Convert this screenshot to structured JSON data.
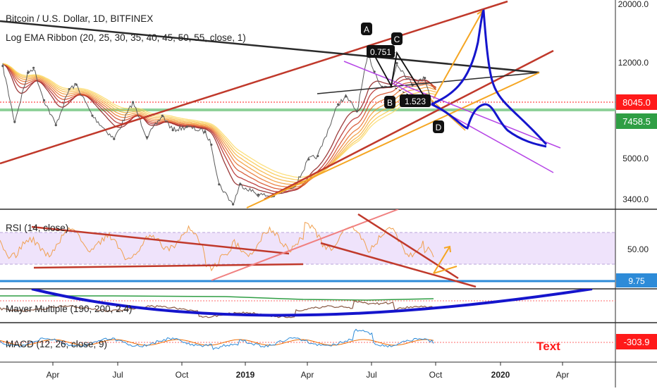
{
  "header": {
    "symbol": "Bitcoin / U.S. Dollar, 1D, BITFINEX",
    "indicator": "Log EMA Ribbon (20, 25, 30, 35, 40, 45, 50, 55, close, 1)"
  },
  "annotations": {
    "a": "A",
    "b": "B",
    "c": "C",
    "d": "D",
    "ratio_ac": "0.751",
    "ratio_bd": "1.523",
    "text_note": "Text"
  },
  "colors": {
    "price": "#5a5a5a",
    "channel": "#c0392b",
    "support": "#f5a623",
    "projection": "#1515cc",
    "pattern": "#b544e6",
    "rsi": "#f0a050",
    "rsi_band": "#efe3fb",
    "mayer_line": "#2f9e44",
    "macd_line": "#2d8bd8",
    "signal_line": "#ef6c00",
    "alert_red": "#ff1a1a"
  },
  "chart_data": [
    {
      "type": "line",
      "title": "Bitcoin / U.S. Dollar, 1D, BITFINEX",
      "scale": "log",
      "ylim": [
        3000,
        20000
      ],
      "y_ticks": [
        "20000.0",
        "12000.0",
        "8045.0",
        "7458.5",
        "5000.0",
        "3400.0"
      ],
      "price_labels": [
        {
          "value": "8045.0",
          "price": 8045,
          "color": "#ff1a1a"
        },
        {
          "value": "7458.5",
          "price": 7458.5,
          "color": "#2f9e44"
        }
      ],
      "series": [
        {
          "x": [
            "2018-01-20",
            "2018-02-06",
            "2018-02-25",
            "2018-03-05",
            "2018-03-20",
            "2018-04-06",
            "2018-04-25",
            "2018-05-05",
            "2018-05-28",
            "2018-06-28",
            "2018-07-25",
            "2018-08-14",
            "2018-09-05",
            "2018-09-20",
            "2018-10-10",
            "2018-11-05",
            "2018-11-14",
            "2018-11-25",
            "2018-12-15",
            "2018-12-25",
            "2019-01-20",
            "2019-02-10",
            "2019-03-15",
            "2019-04-02",
            "2019-04-15",
            "2019-05-14",
            "2019-05-25",
            "2019-06-10",
            "2019-06-26",
            "2019-07-05",
            "2019-07-16",
            "2019-07-28",
            "2019-08-06",
            "2019-08-28",
            "2019-09-15",
            "2019-09-26",
            "2019-10-01"
          ],
          "values": [
            11500,
            6900,
            10800,
            11300,
            8400,
            6700,
            9300,
            9700,
            7300,
            5900,
            8250,
            6000,
            7300,
            6400,
            6600,
            6300,
            5600,
            3900,
            3250,
            3900,
            3550,
            3500,
            3900,
            4900,
            5050,
            8100,
            8700,
            7600,
            12800,
            10900,
            9500,
            9500,
            11800,
            9700,
            10300,
            8100,
            8300
          ]
        }
      ]
    },
    {
      "type": "line",
      "title": "RSI (14, close)",
      "ylim": [
        0,
        100
      ],
      "y_ticks": [
        "50.00",
        "9.75"
      ]
    },
    {
      "type": "line",
      "title": "Mayer Multiple (190, 200, 2.4)"
    },
    {
      "type": "line",
      "title": "MACD (12, 26, close, 9)",
      "y_ticks": [
        "-303.9"
      ]
    }
  ],
  "time_axis": [
    "Apr",
    "Jul",
    "Oct",
    "2019",
    "Apr",
    "Jul",
    "Oct",
    "2020",
    "Apr"
  ]
}
